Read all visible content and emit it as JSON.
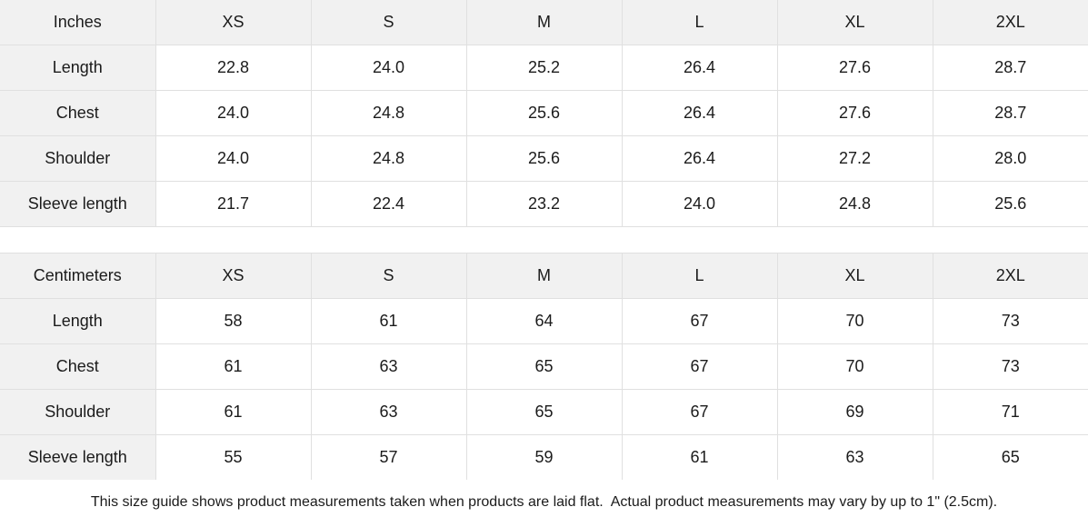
{
  "chart_data": [
    {
      "type": "table",
      "unit": "Inches",
      "columns": [
        "Inches",
        "XS",
        "S",
        "M",
        "L",
        "XL",
        "2XL"
      ],
      "rows": [
        [
          "Length",
          "22.8",
          "24.0",
          "25.2",
          "26.4",
          "27.6",
          "28.7"
        ],
        [
          "Chest",
          "24.0",
          "24.8",
          "25.6",
          "26.4",
          "27.6",
          "28.7"
        ],
        [
          "Shoulder",
          "24.0",
          "24.8",
          "25.6",
          "26.4",
          "27.2",
          "28.0"
        ],
        [
          "Sleeve length",
          "21.7",
          "22.4",
          "23.2",
          "24.0",
          "24.8",
          "25.6"
        ]
      ]
    },
    {
      "type": "table",
      "unit": "Centimeters",
      "columns": [
        "Centimeters",
        "XS",
        "S",
        "M",
        "L",
        "XL",
        "2XL"
      ],
      "rows": [
        [
          "Length",
          "58",
          "61",
          "64",
          "67",
          "70",
          "73"
        ],
        [
          "Chest",
          "61",
          "63",
          "65",
          "67",
          "70",
          "73"
        ],
        [
          "Shoulder",
          "61",
          "63",
          "65",
          "67",
          "69",
          "71"
        ],
        [
          "Sleeve length",
          "55",
          "57",
          "59",
          "61",
          "63",
          "65"
        ]
      ]
    }
  ],
  "footer": {
    "note": "This size guide shows product measurements taken when products are laid flat.  Actual product measurements may vary by up to 1\" (2.5cm)."
  },
  "colors": {
    "header_bg": "#f1f1f1",
    "cell_bg": "#ffffff",
    "border": "#e0e0e0",
    "text": "#1b1b1b"
  }
}
